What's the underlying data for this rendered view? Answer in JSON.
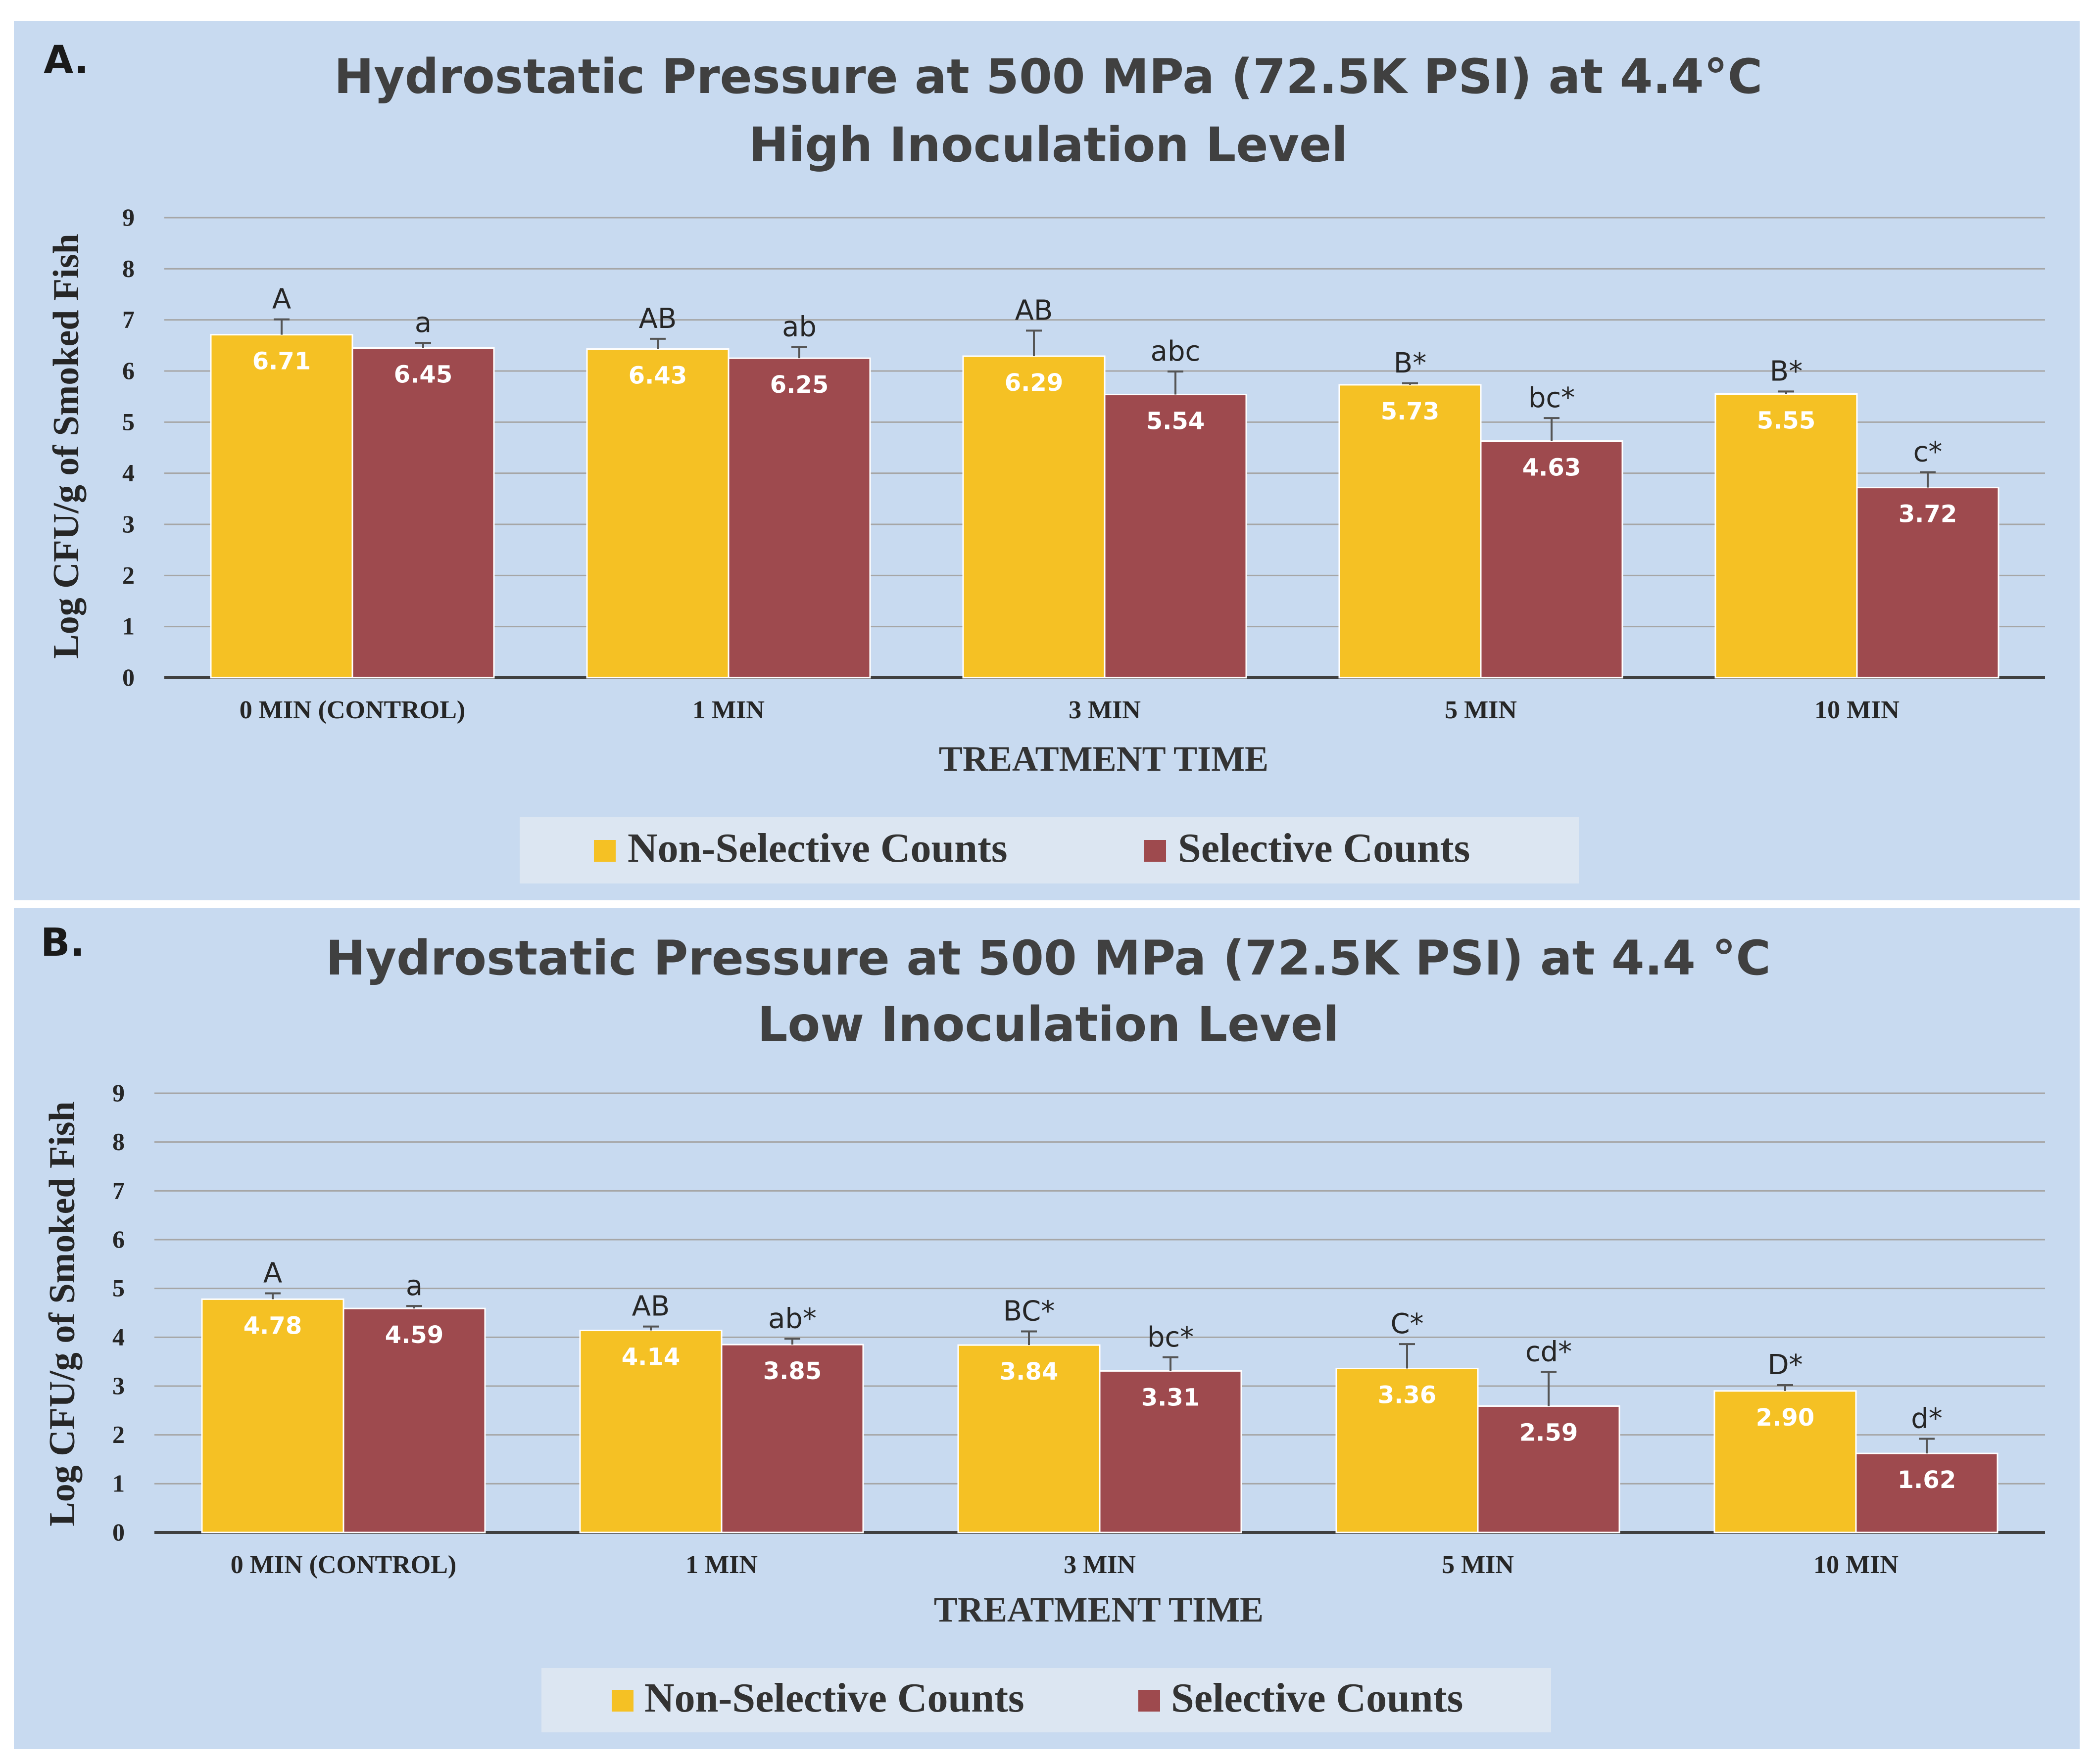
{
  "colors": {
    "panel_bg": "#c8daf0",
    "legend_bg": "#dce6f2",
    "grid": "#a6a6a6",
    "axis": "#404040",
    "non_selective": "#f5c124",
    "selective": "#9e4a4e",
    "bar_label": "#ffffff",
    "text": "#262626"
  },
  "chart_data": [
    {
      "type": "bar",
      "panel_label": "A.",
      "title_line1": "Hydrostatic Pressure at 500 MPa (72.5K PSI) at 4.4°C",
      "title_line2": "High Inoculation Level",
      "xlabel": "TREATMENT TIME",
      "ylabel": "Log CFU/g of Smoked Fish",
      "ylim": [
        0,
        9
      ],
      "yticks": [
        "0",
        "1",
        "2",
        "3",
        "4",
        "5",
        "6",
        "7",
        "8",
        "9"
      ],
      "grid": true,
      "legend_position": "bottom",
      "categories": [
        "0 MIN (CONTROL)",
        "1 MIN",
        "3 MIN",
        "5 MIN",
        "10 MIN"
      ],
      "series": [
        {
          "name": "Non-Selective Counts",
          "values": [
            6.71,
            6.43,
            6.29,
            5.73,
            5.55
          ],
          "value_labels": [
            "6.71",
            "6.43",
            "6.29",
            "5.73",
            "5.55"
          ],
          "errors": [
            0.3,
            0.2,
            0.5,
            0.03,
            0.05
          ],
          "letters": [
            "A",
            "AB",
            "AB",
            "B*",
            "B*"
          ]
        },
        {
          "name": "Selective Counts",
          "values": [
            6.45,
            6.25,
            5.54,
            4.63,
            3.72
          ],
          "value_labels": [
            "6.45",
            "6.25",
            "5.54",
            "4.63",
            "3.72"
          ],
          "errors": [
            0.1,
            0.22,
            0.45,
            0.45,
            0.3
          ],
          "letters": [
            "a",
            "ab",
            "abc",
            "bc*",
            "c*"
          ]
        }
      ]
    },
    {
      "type": "bar",
      "panel_label": "B.",
      "title_line1": "Hydrostatic Pressure at 500 MPa (72.5K PSI) at 4.4 °C",
      "title_line2": "Low Inoculation Level",
      "xlabel": "TREATMENT TIME",
      "ylabel": "Log CFU/g of Smoked Fish",
      "ylim": [
        0,
        9
      ],
      "yticks": [
        "0",
        "1",
        "2",
        "3",
        "4",
        "5",
        "6",
        "7",
        "8",
        "9"
      ],
      "grid": true,
      "legend_position": "bottom",
      "categories": [
        "0 MIN (CONTROL)",
        "1 MIN",
        "3 MIN",
        "5 MIN",
        "10 MIN"
      ],
      "series": [
        {
          "name": "Non-Selective Counts",
          "values": [
            4.78,
            4.14,
            3.84,
            3.36,
            2.9
          ],
          "value_labels": [
            "4.78",
            "4.14",
            "3.84",
            "3.36",
            "2.90"
          ],
          "errors": [
            0.12,
            0.08,
            0.28,
            0.5,
            0.12
          ],
          "letters": [
            "A",
            "AB",
            "BC*",
            "C*",
            "D*"
          ]
        },
        {
          "name": "Selective Counts",
          "values": [
            4.59,
            3.85,
            3.31,
            2.59,
            1.62
          ],
          "value_labels": [
            "4.59",
            "3.85",
            "3.31",
            "2.59",
            "1.62"
          ],
          "errors": [
            0.05,
            0.12,
            0.28,
            0.7,
            0.3
          ],
          "letters": [
            "a",
            "ab*",
            "bc*",
            "cd*",
            "d*"
          ]
        }
      ]
    }
  ]
}
